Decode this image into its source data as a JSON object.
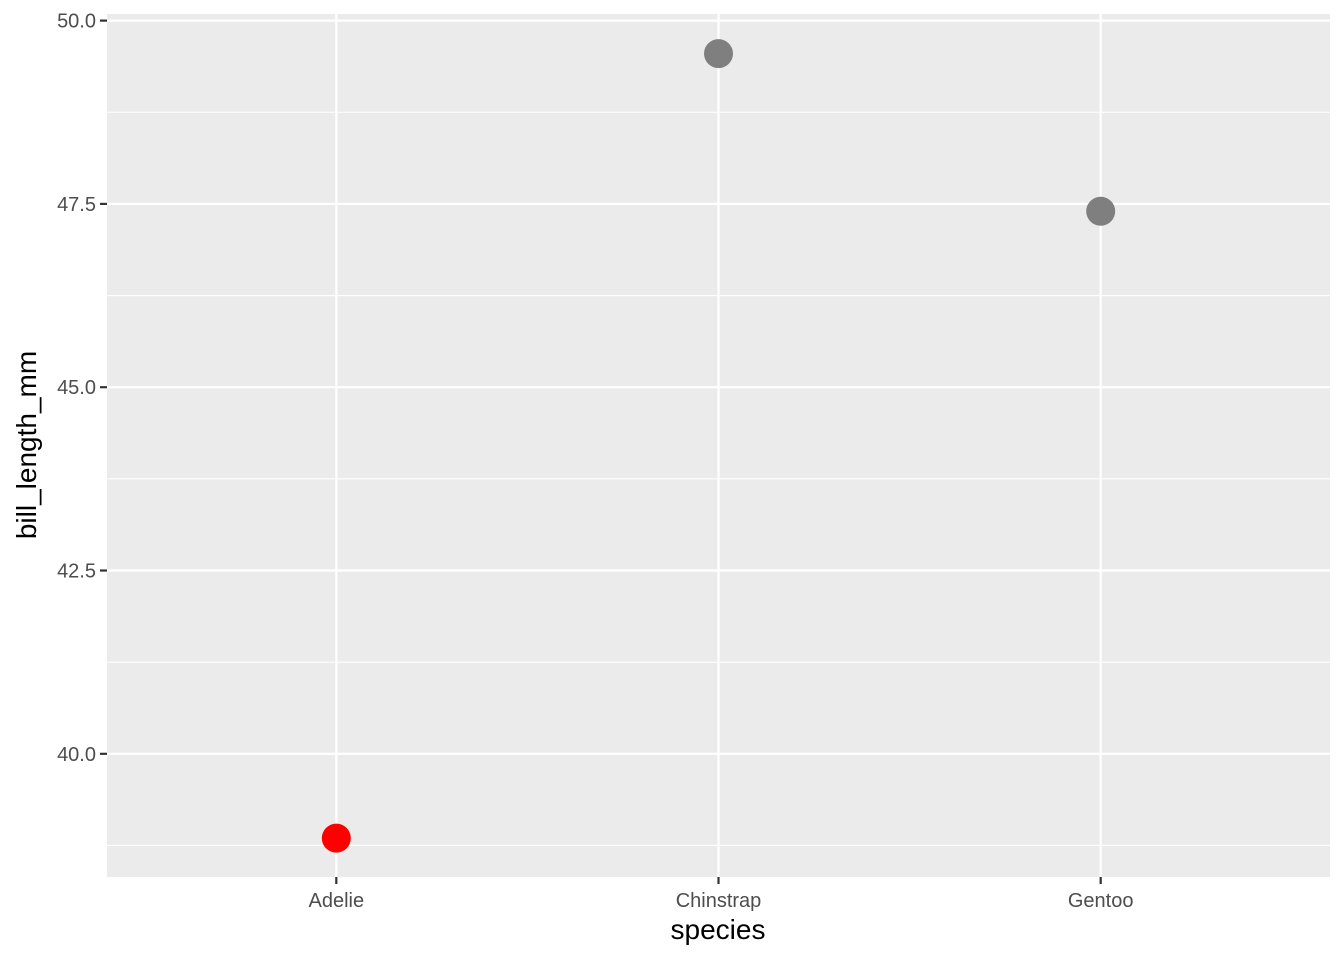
{
  "chart_data": {
    "type": "scatter",
    "categories": [
      "Adelie",
      "Chinstrap",
      "Gentoo"
    ],
    "values": [
      38.85,
      49.55,
      47.4
    ],
    "point_colors": [
      "#FF0000",
      "#7F7F7F",
      "#7F7F7F"
    ],
    "xlabel": "species",
    "ylabel": "bill_length_mm",
    "ylim": [
      38.32,
      50.09
    ],
    "yticks": [
      40.0,
      42.5,
      45.0,
      47.5,
      50.0
    ],
    "ytick_labels": [
      "40.0",
      "42.5",
      "45.0",
      "47.5",
      "50.0"
    ],
    "grid": true,
    "panel_background": "#EBEBEB"
  }
}
